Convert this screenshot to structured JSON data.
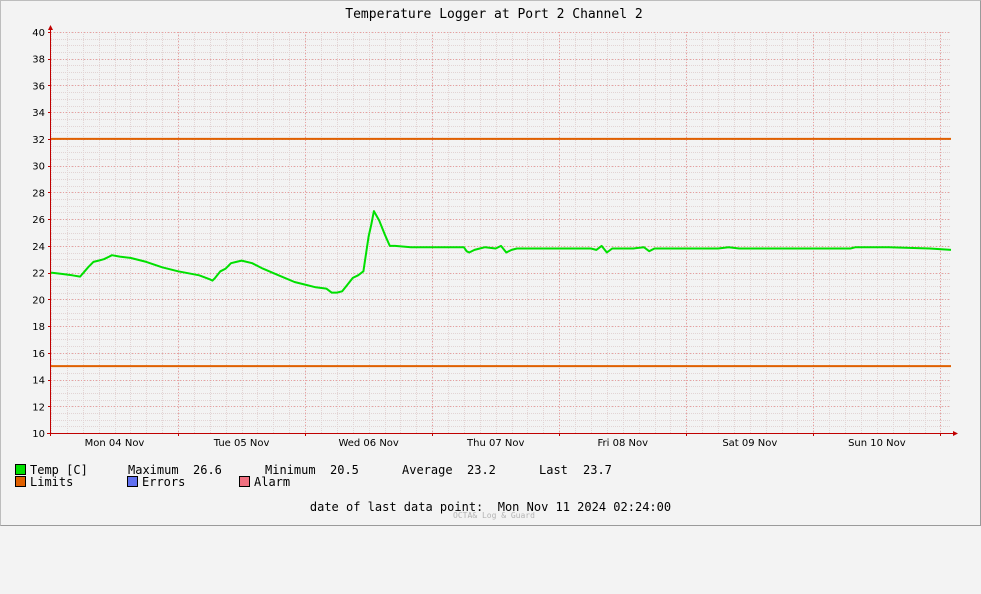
{
  "chart_data": {
    "type": "line",
    "title": "Temperature Logger at Port 2 Channel 2",
    "ylim": [
      10,
      40
    ],
    "y_ticks": [
      10,
      12,
      14,
      16,
      18,
      20,
      22,
      24,
      26,
      28,
      30,
      32,
      34,
      36,
      38,
      40
    ],
    "x_start_hours": 0,
    "x_end_hours": 170,
    "day_labels": [
      "Mon 04 Nov",
      "Tue 05 Nov",
      "Wed 06 Nov",
      "Thu 07 Nov",
      "Fri 08 Nov",
      "Sat 09 Nov",
      "Sun 10 Nov"
    ],
    "grid": true,
    "limits": [
      32,
      15
    ],
    "colors": {
      "temp": "#00e000",
      "limits": "#e06000",
      "errors": "#6070f0",
      "alarm": "#f07080",
      "grid": "#e8a0a0",
      "axis": "#c00000"
    },
    "series": [
      {
        "name": "Temp [C]",
        "x": [
          0,
          2,
          4,
          5.5,
          7,
          8,
          9,
          10,
          11,
          11.5,
          13,
          15,
          18,
          21,
          24,
          28,
          30,
          30.5,
          31,
          32,
          33,
          34,
          35,
          36,
          38,
          40,
          43,
          46,
          48,
          50,
          52,
          53,
          54,
          55,
          56,
          57,
          58,
          59,
          60,
          60.5,
          61,
          62,
          63,
          64,
          65,
          68,
          75,
          78,
          78.5,
          79,
          80,
          81,
          82,
          84,
          85,
          86,
          87,
          88,
          89,
          90,
          92,
          96,
          100,
          102,
          103,
          104,
          105,
          106,
          110,
          112,
          113,
          114,
          116,
          118,
          122,
          126,
          128,
          130,
          134,
          140,
          146,
          151,
          152,
          158,
          166,
          170
        ],
        "y": [
          22.0,
          21.9,
          21.8,
          21.7,
          22.4,
          22.8,
          22.9,
          23.0,
          23.2,
          23.3,
          23.2,
          23.1,
          22.8,
          22.4,
          22.1,
          21.8,
          21.5,
          21.4,
          21.6,
          22.1,
          22.3,
          22.7,
          22.8,
          22.9,
          22.7,
          22.3,
          21.8,
          21.3,
          21.1,
          20.9,
          20.8,
          20.5,
          20.5,
          20.6,
          21.1,
          21.6,
          21.8,
          22.1,
          24.7,
          25.6,
          26.6,
          25.9,
          24.9,
          24.0,
          24.0,
          23.9,
          23.9,
          23.9,
          23.6,
          23.5,
          23.7,
          23.8,
          23.9,
          23.8,
          24.0,
          23.5,
          23.7,
          23.8,
          23.8,
          23.8,
          23.8,
          23.8,
          23.8,
          23.8,
          23.7,
          24.0,
          23.5,
          23.8,
          23.8,
          23.9,
          23.6,
          23.8,
          23.8,
          23.8,
          23.8,
          23.8,
          23.9,
          23.8,
          23.8,
          23.8,
          23.8,
          23.8,
          23.9,
          23.9,
          23.8,
          23.7
        ]
      }
    ]
  },
  "legend": {
    "temp_label": "Temp [C]",
    "max_label": "Maximum",
    "max_value": "26.6",
    "min_label": "Minimum",
    "min_value": "20.5",
    "avg_label": "Average",
    "avg_value": "23.2",
    "last_label": "Last",
    "last_value": "23.7",
    "limits_label": "Limits",
    "errors_label": "Errors",
    "alarm_label": "Alarm"
  },
  "last_data_point": "date of last data point:  Mon Nov 11 2024 02:24:00",
  "footer": "OCTA& Log & Guard"
}
